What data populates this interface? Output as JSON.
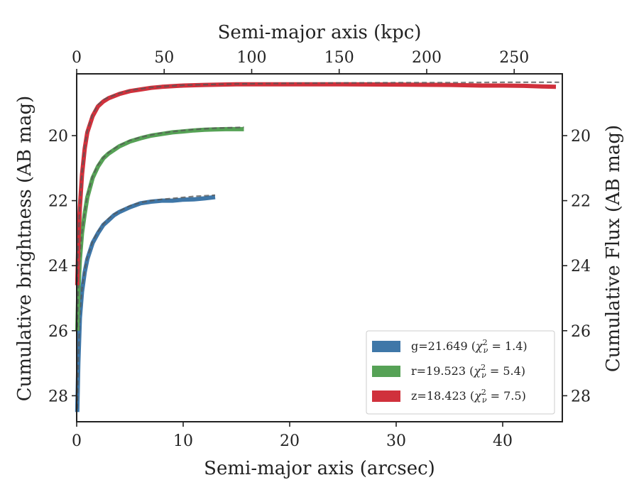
{
  "chart_data": {
    "type": "line",
    "xlabel": "Semi-major axis (arcsec)",
    "x2label": "Semi-major axis (kpc)",
    "ylabel": "Cumulative brightness (AB mag)",
    "y2label": "Cumulative Flux (AB mag)",
    "xlim": [
      0,
      45.6
    ],
    "x2lim": [
      0,
      277.5
    ],
    "ylim": [
      28.8,
      18.1
    ],
    "y_inverted": true,
    "grid": false,
    "legend_position": "lower-right",
    "x_ticks": [
      0,
      10,
      20,
      30,
      40
    ],
    "x2_ticks": [
      0,
      50,
      100,
      150,
      200,
      250
    ],
    "y_ticks": [
      20,
      22,
      24,
      26,
      28
    ],
    "series": [
      {
        "name": "g=21.649 (χ²ν = 1.4)",
        "legend_main": "g=21.649 (",
        "legend_var": "χ",
        "legend_sup": "2",
        "legend_sub": "ν",
        "legend_tail": " = 1.4)",
        "color": "#3f77a8",
        "x": [
          0.05,
          0.15,
          0.3,
          0.5,
          0.75,
          1,
          1.5,
          2,
          2.5,
          3,
          3.5,
          4,
          5,
          6,
          7,
          8,
          9,
          10,
          11,
          12,
          13
        ],
        "y": [
          28.5,
          27.0,
          25.6,
          24.8,
          24.2,
          23.8,
          23.3,
          23.0,
          22.75,
          22.6,
          22.45,
          22.35,
          22.2,
          22.08,
          22.03,
          22.0,
          22.0,
          21.97,
          21.96,
          21.93,
          21.89
        ],
        "model_x": [
          0.05,
          0.15,
          0.3,
          0.5,
          0.75,
          1,
          1.5,
          2,
          2.5,
          3,
          3.5,
          4,
          5,
          6,
          7,
          8,
          9,
          10,
          11,
          12,
          13
        ],
        "model_y": [
          28.4,
          26.9,
          25.5,
          24.7,
          24.15,
          23.75,
          23.25,
          22.95,
          22.72,
          22.55,
          22.42,
          22.32,
          22.16,
          22.06,
          22.0,
          21.96,
          21.93,
          21.9,
          21.87,
          21.85,
          21.83
        ]
      },
      {
        "name": "r=19.523 (χ²ν = 5.4)",
        "legend_main": "r=19.523 (",
        "legend_var": "χ",
        "legend_sup": "2",
        "legend_sub": "ν",
        "legend_tail": " = 5.4)",
        "color": "#56a256",
        "x": [
          0.05,
          0.15,
          0.3,
          0.5,
          0.75,
          1,
          1.5,
          2,
          2.5,
          3,
          4,
          5,
          6,
          7,
          8,
          9,
          10,
          11,
          12,
          13,
          14,
          15,
          15.7
        ],
        "y": [
          26.0,
          24.8,
          23.8,
          23.0,
          22.4,
          21.9,
          21.3,
          20.95,
          20.7,
          20.55,
          20.33,
          20.18,
          20.08,
          20.0,
          19.95,
          19.9,
          19.87,
          19.84,
          19.82,
          19.81,
          19.8,
          19.8,
          19.8
        ],
        "model_x": [
          0.05,
          0.15,
          0.3,
          0.5,
          0.75,
          1,
          1.5,
          2,
          2.5,
          3,
          4,
          5,
          6,
          7,
          8,
          9,
          10,
          11,
          12,
          13,
          14,
          15,
          15.7
        ],
        "model_y": [
          25.9,
          24.7,
          23.7,
          22.95,
          22.35,
          21.85,
          21.25,
          20.9,
          20.68,
          20.52,
          20.3,
          20.15,
          20.05,
          19.98,
          19.92,
          19.88,
          19.84,
          19.81,
          19.79,
          19.77,
          19.76,
          19.75,
          19.74
        ]
      },
      {
        "name": "z=18.423 (χ²ν = 7.5)",
        "legend_main": "z=18.423 (",
        "legend_var": "χ",
        "legend_sup": "2",
        "legend_sub": "ν",
        "legend_tail": " = 7.5)",
        "color": "#d0313c",
        "x": [
          0.05,
          0.15,
          0.3,
          0.5,
          0.75,
          1,
          1.5,
          2,
          2.5,
          3,
          4,
          5,
          6,
          7,
          8,
          10,
          12,
          15,
          20,
          25,
          30,
          35,
          38,
          40,
          42,
          44,
          45
        ],
        "y": [
          24.6,
          23.3,
          22.2,
          21.2,
          20.4,
          19.9,
          19.4,
          19.1,
          18.95,
          18.85,
          18.72,
          18.63,
          18.58,
          18.53,
          18.5,
          18.46,
          18.44,
          18.42,
          18.42,
          18.42,
          18.43,
          18.44,
          18.46,
          18.46,
          18.47,
          18.49,
          18.5
        ],
        "model_x": [
          0.05,
          0.15,
          0.3,
          0.5,
          0.75,
          1,
          1.5,
          2,
          2.5,
          3,
          4,
          5,
          6,
          7,
          8,
          10,
          12,
          15,
          20,
          25,
          30,
          35,
          40,
          45.3
        ],
        "model_y": [
          24.5,
          23.2,
          22.1,
          21.15,
          20.35,
          19.85,
          19.35,
          19.05,
          18.9,
          18.82,
          18.7,
          18.61,
          18.56,
          18.52,
          18.49,
          18.45,
          18.43,
          18.41,
          18.39,
          18.38,
          18.37,
          18.37,
          18.36,
          18.36
        ]
      }
    ]
  }
}
